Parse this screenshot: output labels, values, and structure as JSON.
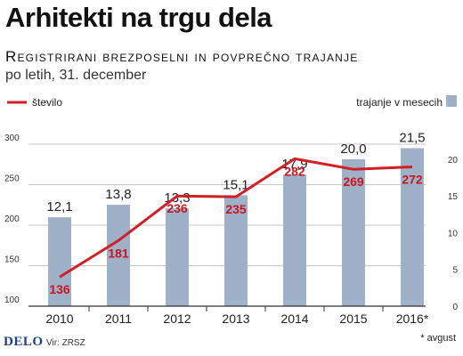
{
  "header": {
    "title": "Arhitekti na trgu dela",
    "subtitle": "Registrirani brezposelni in povprečno trajanje",
    "subtitle2": "po letih, 31. december"
  },
  "footer": {
    "logo": "DELO",
    "source": "Vir: ZRSZ",
    "footnote": "* avgust"
  },
  "colors": {
    "bar": "#9fb0c9",
    "line": "#d21f26",
    "line_label": "#c8161d",
    "grid": "#c7c7c7"
  },
  "chart_data": {
    "type": "bar+line",
    "categories": [
      "2010",
      "2011",
      "2012",
      "2013",
      "2014",
      "2015",
      "2016*"
    ],
    "legend": {
      "line": "število",
      "bar": "trajanje v mesecih"
    },
    "series": [
      {
        "name": "trajanje v mesecih",
        "type": "bar",
        "axis": "right",
        "values": [
          12.1,
          13.8,
          13.3,
          15.1,
          17.9,
          20.0,
          21.5
        ],
        "labels": [
          "12,1",
          "13,8",
          "13,3",
          "15,1",
          "17,9",
          "20,0",
          "21,5"
        ]
      },
      {
        "name": "število",
        "type": "line",
        "axis": "left",
        "values": [
          136,
          181,
          236,
          235,
          282,
          269,
          272
        ],
        "labels": [
          "136",
          "181",
          "236",
          "235",
          "282",
          "269",
          "272"
        ]
      }
    ],
    "y_left": {
      "ticks": [
        100,
        150,
        200,
        250,
        300
      ],
      "range": [
        100,
        300
      ]
    },
    "y_right": {
      "ticks": [
        0,
        5,
        10,
        15,
        20
      ],
      "range": [
        0,
        23.5
      ]
    },
    "grid": true
  }
}
